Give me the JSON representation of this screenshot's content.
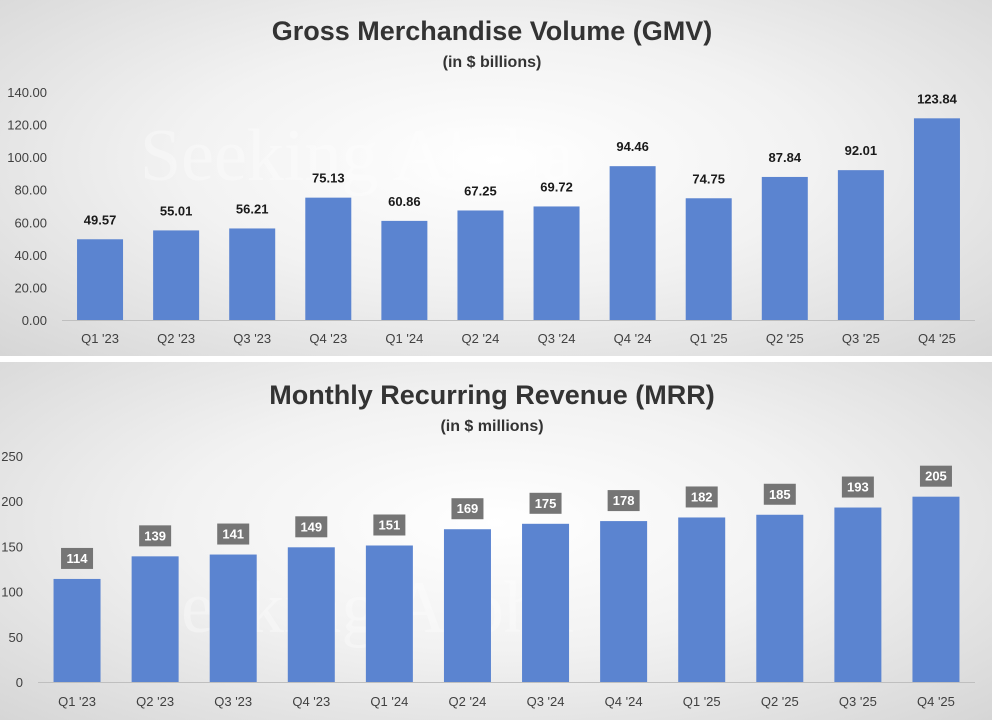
{
  "chart_data": [
    {
      "type": "bar",
      "title": "Gross Merchandise Volume (GMV)",
      "subtitle": "(in $ billions)",
      "categories": [
        "Q1 '23",
        "Q2 '23",
        "Q3 '23",
        "Q4 '23",
        "Q1 '24",
        "Q2 '24",
        "Q3 '24",
        "Q4 '24",
        "Q1 '25",
        "Q2 '25",
        "Q3 '25",
        "Q4 '25"
      ],
      "values": [
        49.57,
        55.01,
        56.21,
        75.13,
        60.86,
        67.25,
        69.72,
        94.46,
        74.75,
        87.84,
        92.01,
        123.84
      ],
      "value_labels": [
        "49.57",
        "55.01",
        "56.21",
        "75.13",
        "60.86",
        "67.25",
        "69.72",
        "94.46",
        "74.75",
        "87.84",
        "92.01",
        "123.84"
      ],
      "ylim": [
        0,
        140
      ],
      "yticks": [
        0,
        20,
        40,
        60,
        80,
        100,
        120,
        140
      ],
      "ytick_labels": [
        "0.00",
        "20.00",
        "40.00",
        "60.00",
        "80.00",
        "100.00",
        "120.00",
        "140.00"
      ],
      "label_style": "plain",
      "bar_color": "#5b84d0",
      "watermark": "Seeking Alpha"
    },
    {
      "type": "bar",
      "title": "Monthly Recurring Revenue (MRR)",
      "subtitle": "(in $ millions)",
      "categories": [
        "Q1 '23",
        "Q2 '23",
        "Q3 '23",
        "Q4 '23",
        "Q1 '24",
        "Q2 '24",
        "Q3 '24",
        "Q4 '24",
        "Q1 '25",
        "Q2 '25",
        "Q3 '25",
        "Q4 '25"
      ],
      "values": [
        114,
        139,
        141,
        149,
        151,
        169,
        175,
        178,
        182,
        185,
        193,
        205
      ],
      "value_labels": [
        "114",
        "139",
        "141",
        "149",
        "151",
        "169",
        "175",
        "178",
        "182",
        "185",
        "193",
        "205"
      ],
      "ylim": [
        0,
        250
      ],
      "yticks": [
        0,
        50,
        100,
        150,
        200,
        250
      ],
      "ytick_labels": [
        "0",
        "50",
        "100",
        "150",
        "200",
        "250"
      ],
      "label_style": "boxed",
      "bar_color": "#5b84d0",
      "label_box_color": "#757575",
      "watermark": "Seeking Alpha"
    }
  ]
}
